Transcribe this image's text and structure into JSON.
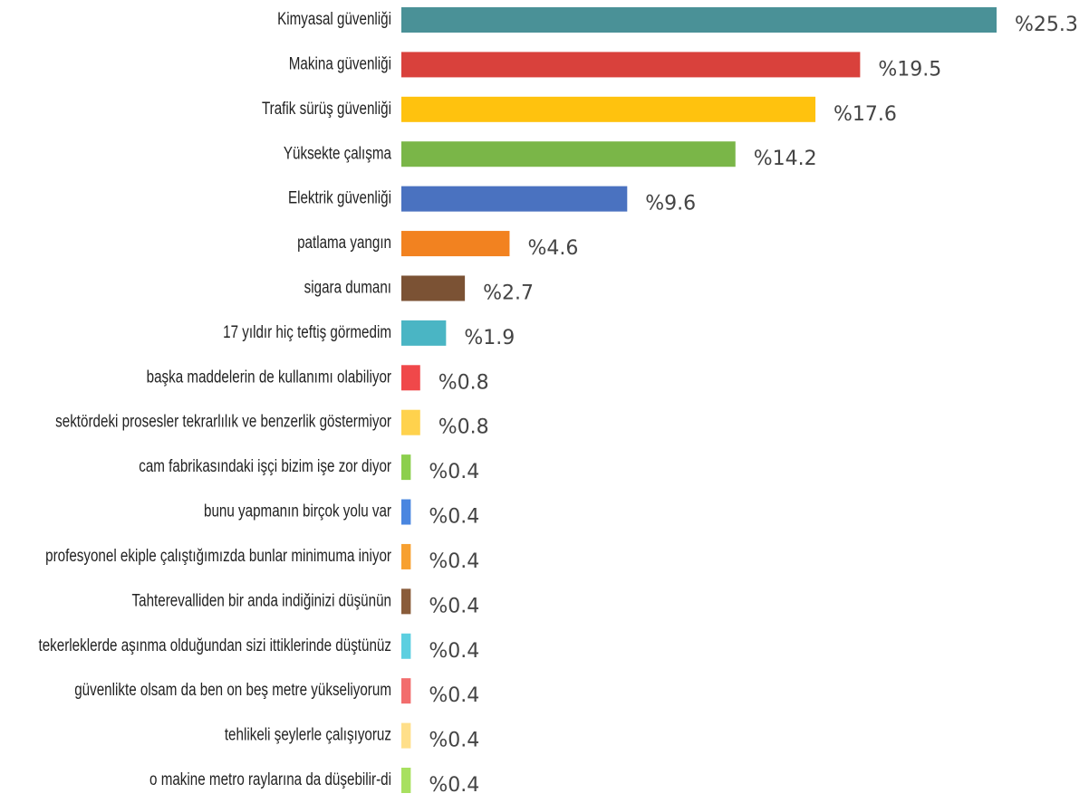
{
  "chart_data": {
    "type": "bar",
    "orientation": "horizontal",
    "categories": [
      "Kimyasal güvenliği",
      "Makina güvenliği",
      "Trafik sürüş güvenliği",
      "Yüksekte çalışma",
      "Elektrik güvenliği",
      "patlama yangın",
      "sigara dumanı",
      "17 yıldır hiç teftiş görmedim",
      "başka maddelerin de kullanımı olabiliyor",
      "sektördeki prosesler tekrarlılık ve benzerlik göstermiyor",
      "cam fabrikasındaki işçi bizim işe zor diyor",
      "bunu yapmanın birçok yolu var",
      "profesyonel ekiple çalıştığımızda bunlar minimuma iniyor",
      "Tahterevalliden bir anda indiğinizi düşünün",
      "tekerleklerde aşınma olduğundan sizi ittiklerinde düştünüz",
      "güvenlikte olsam da ben on beş metre yükseliyorum",
      "tehlikeli şeylerle çalışıyoruz",
      "o makine metro raylarına da düşebilir-di"
    ],
    "values": [
      25.3,
      19.5,
      17.6,
      14.2,
      9.6,
      4.6,
      2.7,
      1.9,
      0.8,
      0.8,
      0.4,
      0.4,
      0.4,
      0.4,
      0.4,
      0.4,
      0.4,
      0.4
    ],
    "value_labels": [
      "%25.3",
      "%19.5",
      "%17.6",
      "%14.2",
      "%9.6",
      "%4.6",
      "%2.7",
      "%1.9",
      "%0.8",
      "%0.8",
      "%0.4",
      "%0.4",
      "%0.4",
      "%0.4",
      "%0.4",
      "%0.4",
      "%0.4",
      "%0.4"
    ],
    "colors": [
      "#4a9197",
      "#d9413c",
      "#ffc20e",
      "#7ab648",
      "#4a72c0",
      "#f28220",
      "#7b5234",
      "#4ab5c4",
      "#f0484a",
      "#ffd24d",
      "#8ccf4d",
      "#4a86e0",
      "#f7a030",
      "#8a5c3a",
      "#5ccfe0",
      "#f26d6d",
      "#ffdf8a",
      "#a8e060"
    ]
  }
}
